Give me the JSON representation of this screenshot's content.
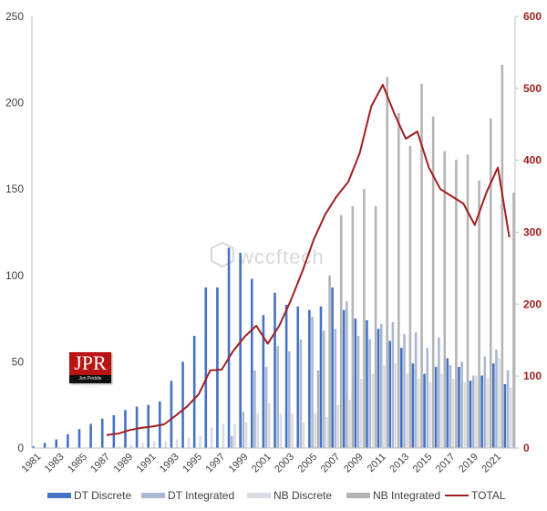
{
  "chart_data": {
    "type": "bar",
    "combo": "bar + line (secondary axis)",
    "title": "",
    "xlabel": "",
    "ylabel": "",
    "y2label": "",
    "ylim": [
      0,
      250
    ],
    "y2lim": [
      0,
      600
    ],
    "yticks": [
      0,
      50,
      100,
      150,
      200,
      250
    ],
    "y2ticks": [
      0,
      100,
      200,
      300,
      400,
      500,
      600
    ],
    "grid": false,
    "legend_position": "bottom",
    "categories": [
      "1981",
      "1982",
      "1983",
      "1984",
      "1985",
      "1986",
      "1987",
      "1988",
      "1989",
      "1990",
      "1991",
      "1992",
      "1993",
      "1994",
      "1995",
      "1996",
      "1997",
      "1998",
      "1999",
      "2000",
      "2001",
      "2002",
      "2003",
      "2004",
      "2005",
      "2006",
      "2007",
      "2008",
      "2009",
      "2010",
      "2011",
      "2012",
      "2013",
      "2014",
      "2015",
      "2016",
      "2017",
      "2018",
      "2019",
      "2020",
      "2021",
      "2022"
    ],
    "xtick_labels": [
      "1981",
      "1983",
      "1985",
      "1987",
      "1989",
      "1991",
      "1993",
      "1995",
      "1997",
      "1999",
      "2001",
      "2003",
      "2005",
      "2007",
      "2009",
      "2011",
      "2013",
      "2015",
      "2017",
      "2019",
      "2021"
    ],
    "series": [
      {
        "name": "DT Discrete",
        "axis": "left",
        "color": "#4472c4",
        "values": [
          1,
          3,
          5,
          8,
          11,
          14,
          17,
          19,
          22,
          24,
          25,
          27,
          39,
          50,
          65,
          93,
          93,
          116,
          113,
          98,
          77,
          90,
          83,
          82,
          80,
          82,
          93,
          80,
          75,
          74,
          69,
          62,
          58,
          49,
          43,
          47,
          52,
          47,
          39,
          42,
          49,
          37
        ]
      },
      {
        "name": "DT Integrated",
        "axis": "left",
        "color": "#a9b8d0",
        "values": [
          0,
          0,
          0,
          0,
          0,
          0,
          0,
          0,
          0,
          0,
          0,
          0,
          0,
          0,
          0,
          0,
          0,
          7,
          21,
          45,
          47,
          59,
          56,
          63,
          76,
          68,
          69,
          85,
          65,
          63,
          72,
          73,
          66,
          67,
          58,
          64,
          48,
          50,
          42,
          53,
          57,
          45
        ]
      },
      {
        "name": "NB Discrete",
        "axis": "left",
        "color": "#d9dce3",
        "values": [
          0,
          0,
          0,
          0,
          0,
          0,
          0,
          1,
          2,
          3,
          4,
          4,
          5,
          6,
          7,
          12,
          14,
          14,
          15,
          20,
          26,
          20,
          20,
          15,
          20,
          18,
          25,
          28,
          40,
          43,
          48,
          49,
          43,
          40,
          38,
          43,
          40,
          38,
          42,
          40,
          52,
          35
        ]
      },
      {
        "name": "NB Integrated",
        "axis": "left",
        "color": "#b4b4b4",
        "values": [
          0,
          0,
          0,
          0,
          0,
          0,
          0,
          0,
          0,
          0,
          0,
          0,
          0,
          0,
          0,
          0,
          0,
          0,
          0,
          0,
          0,
          0,
          0,
          0,
          45,
          100,
          135,
          140,
          150,
          140,
          215,
          194,
          175,
          211,
          192,
          172,
          167,
          170,
          155,
          191,
          222,
          148
        ]
      },
      {
        "name": "TOTAL",
        "axis": "right",
        "type": "line",
        "color": "#a01f1f",
        "values": [
          null,
          null,
          null,
          null,
          null,
          null,
          18,
          20,
          25,
          28,
          30,
          33,
          45,
          58,
          75,
          108,
          109,
          135,
          155,
          170,
          145,
          170,
          205,
          245,
          290,
          325,
          350,
          370,
          410,
          475,
          505,
          465,
          430,
          440,
          390,
          360,
          350,
          340,
          310,
          355,
          390,
          293
        ]
      }
    ]
  },
  "legend": {
    "items": [
      "DT Discrete",
      "DT Integrated",
      "NB Discrete",
      "NB Integrated",
      "TOTAL"
    ]
  },
  "branding": {
    "logo_text": "JPR",
    "logo_subtext": "Jon Peddie Research",
    "watermark": "wccftech"
  }
}
